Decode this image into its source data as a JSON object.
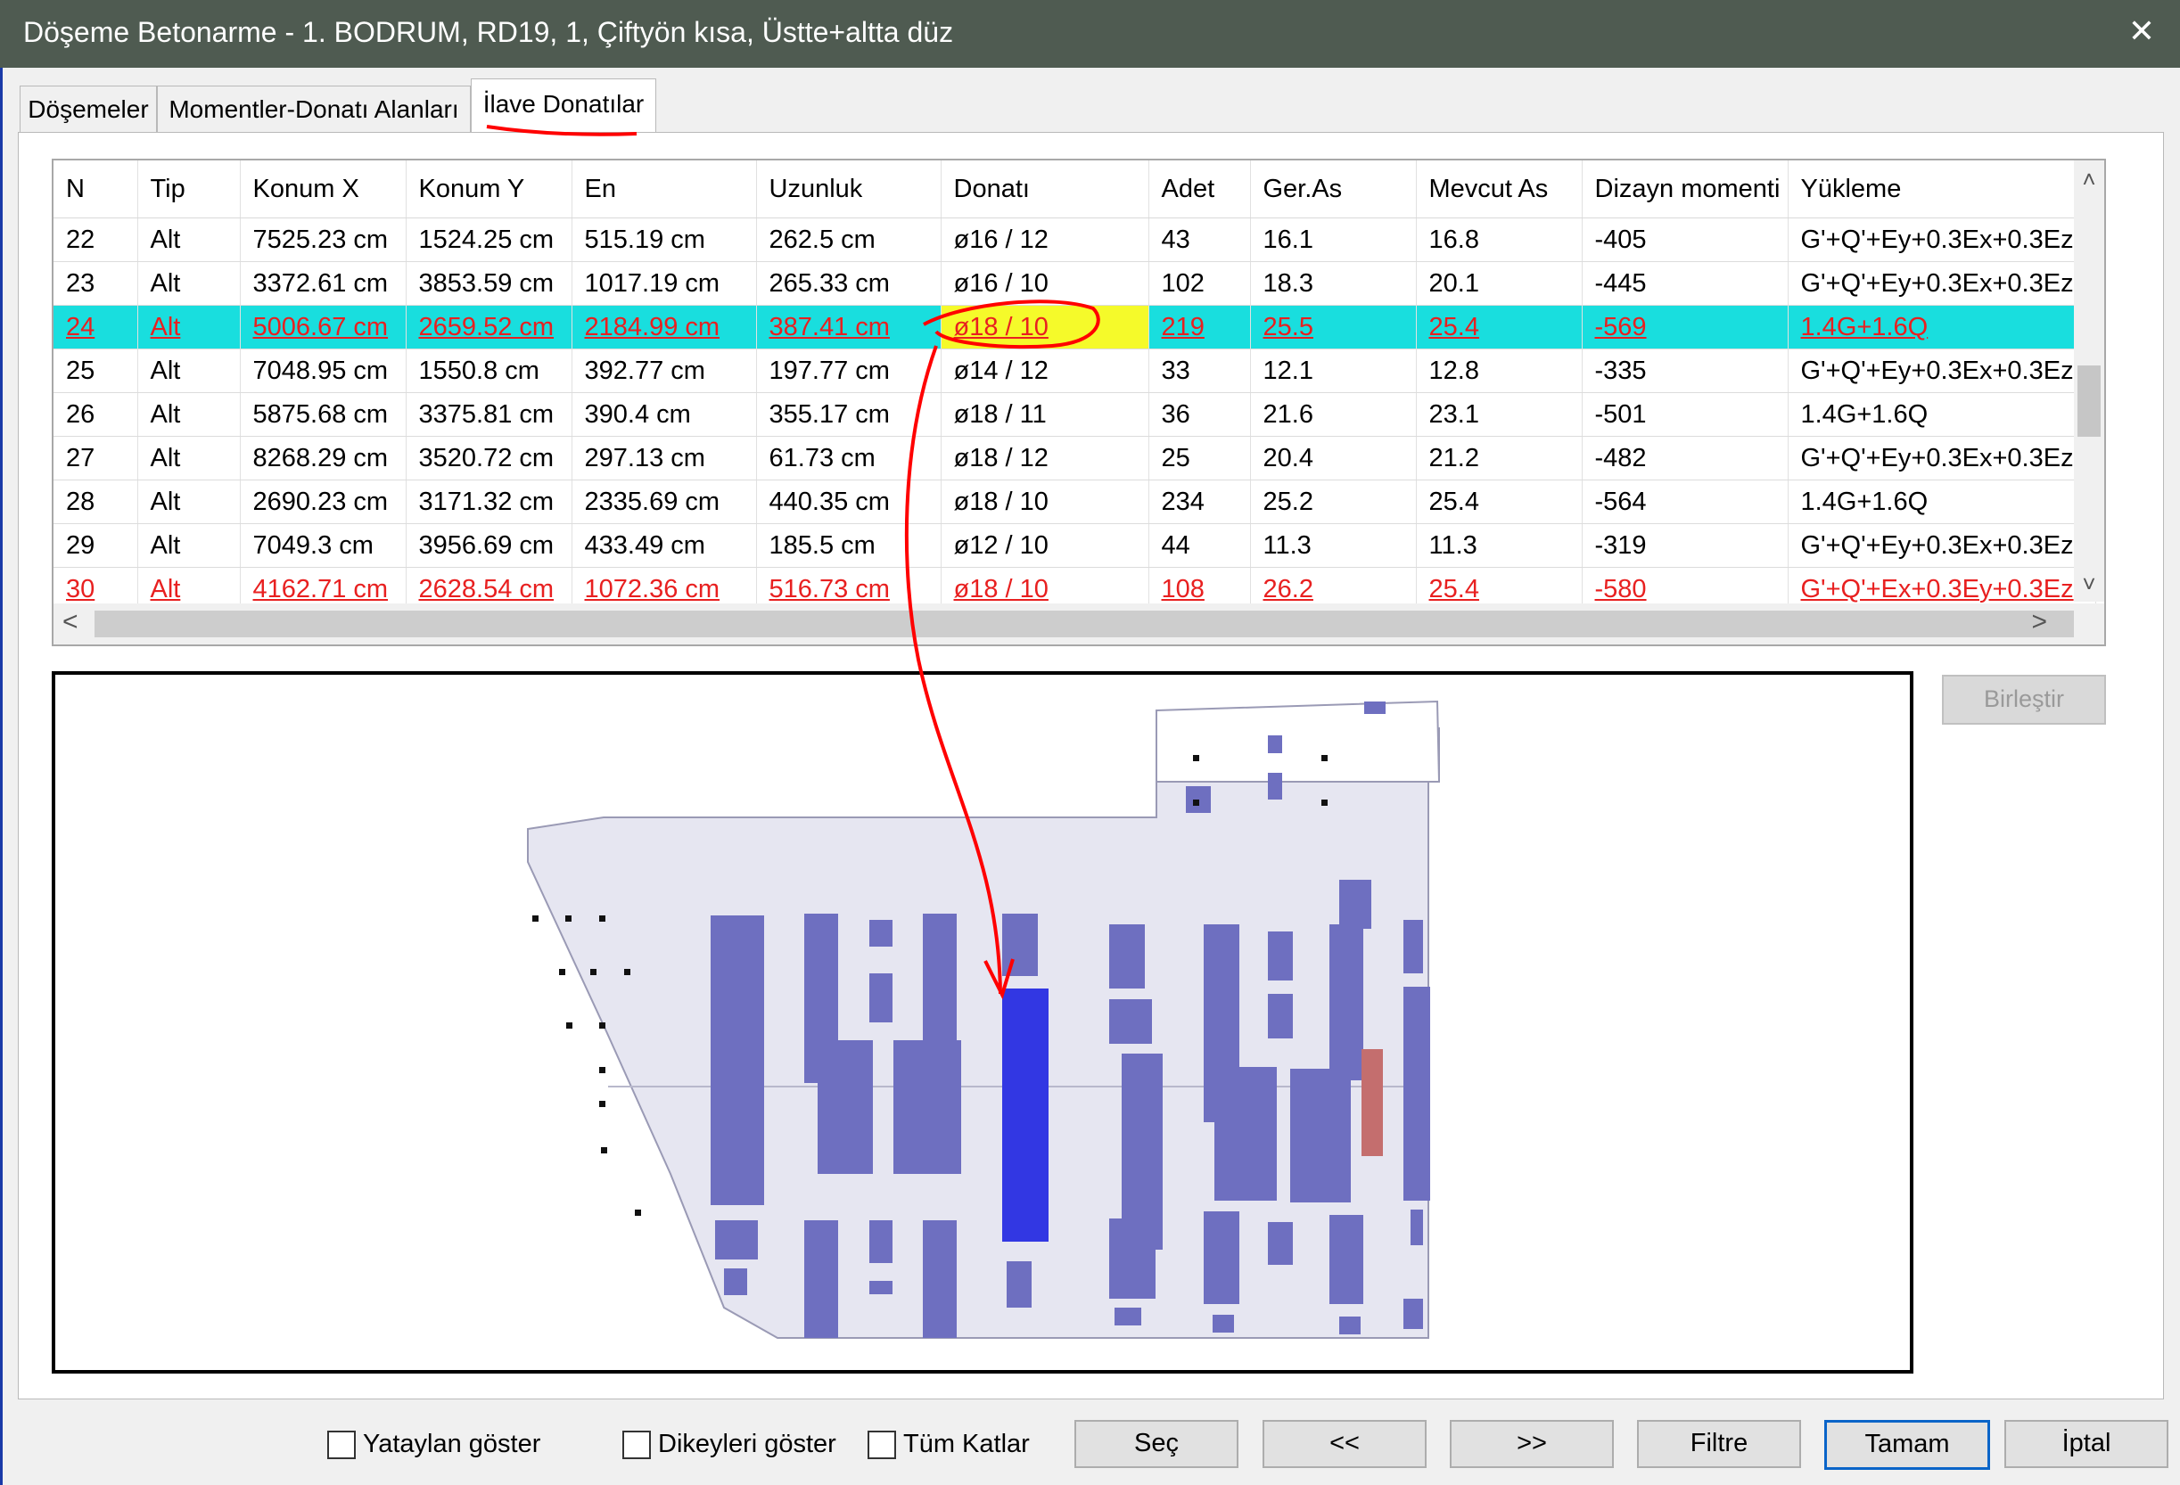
{
  "window": {
    "title": "Döşeme Betonarme - 1. BODRUM, RD19, 1, Çiftyön kısa, Üstte+altta düz",
    "close_glyph": "✕"
  },
  "tabs": [
    {
      "label": "Döşemeler"
    },
    {
      "label": "Momentler-Donatı Alanları"
    },
    {
      "label": "İlave Donatılar"
    }
  ],
  "grid": {
    "columns": [
      "N",
      "Tip",
      "Konum X",
      "Konum Y",
      "En",
      "Uzunluk",
      "Donatı",
      "Adet",
      "Ger.As",
      "Mevcut As",
      "Dizayn momenti",
      "Yükleme"
    ],
    "rows": [
      [
        "22",
        "Alt",
        "7525.23 cm",
        "1524.25 cm",
        "515.19 cm",
        "262.5 cm",
        "ø16 / 12",
        "43",
        "16.1",
        "16.8",
        "-405",
        "G'+Q'+Ey+0.3Ex+0.3Ez"
      ],
      [
        "23",
        "Alt",
        "3372.61 cm",
        "3853.59 cm",
        "1017.19 cm",
        "265.33 cm",
        "ø16 / 10",
        "102",
        "18.3",
        "20.1",
        "-445",
        "G'+Q'+Ey+0.3Ex+0.3Ez"
      ],
      [
        "24",
        "Alt",
        "5006.67 cm",
        "2659.52 cm",
        "2184.99 cm",
        "387.41 cm",
        "ø18 / 10",
        "219",
        "25.5",
        "25.4",
        "-569",
        "1.4G+1.6Q"
      ],
      [
        "25",
        "Alt",
        "7048.95 cm",
        "1550.8 cm",
        "392.77 cm",
        "197.77 cm",
        "ø14 / 12",
        "33",
        "12.1",
        "12.8",
        "-335",
        "G'+Q'+Ey+0.3Ex+0.3Ez"
      ],
      [
        "26",
        "Alt",
        "5875.68 cm",
        "3375.81 cm",
        "390.4 cm",
        "355.17 cm",
        "ø18 / 11",
        "36",
        "21.6",
        "23.1",
        "-501",
        "1.4G+1.6Q"
      ],
      [
        "27",
        "Alt",
        "8268.29 cm",
        "3520.72 cm",
        "297.13 cm",
        "61.73 cm",
        "ø18 / 12",
        "25",
        "20.4",
        "21.2",
        "-482",
        "G'+Q'+Ey+0.3Ex+0.3Ez"
      ],
      [
        "28",
        "Alt",
        "2690.23 cm",
        "3171.32 cm",
        "2335.69 cm",
        "440.35 cm",
        "ø18 / 10",
        "234",
        "25.2",
        "25.4",
        "-564",
        "1.4G+1.6Q"
      ],
      [
        "29",
        "Alt",
        "7049.3 cm",
        "3956.69 cm",
        "433.49 cm",
        "185.5 cm",
        "ø12 / 10",
        "44",
        "11.3",
        "11.3",
        "-319",
        "G'+Q'+Ey+0.3Ex+0.3Ez"
      ],
      [
        "30",
        "Alt",
        "4162.71 cm",
        "2628.54 cm",
        "1072.36 cm",
        "516.73 cm",
        "ø18 / 10",
        "108",
        "26.2",
        "25.4",
        "-580",
        "G'+Q'+Ex+0.3Ey+0.3Ez"
      ]
    ],
    "selected_row": "24",
    "warning_rows": [
      "30"
    ],
    "scroll_up_glyph": "˄",
    "scroll_down_glyph": "˅",
    "scroll_left_glyph": "<",
    "scroll_right_glyph": ">"
  },
  "birlestir_label": "Birleştir",
  "checkboxes": [
    {
      "label": "Yataylan göster",
      "checked": false
    },
    {
      "label": "Dikeyleri göster",
      "checked": false
    },
    {
      "label": "Tüm Katlar",
      "checked": false
    }
  ],
  "buttons": {
    "sec": "Seç",
    "prev": "<<",
    "next": ">>",
    "filtre": "Filtre",
    "tamam": "Tamam",
    "iptal": "İptal"
  },
  "colors": {
    "titlebar": "#4f5b51",
    "selected_row": "#19dede",
    "highlight_cell": "#f5fa2a",
    "warning_text": "#e82020",
    "slab_fill": "#e6e6f1",
    "rebar": "#6e6fc0",
    "rebar_selected": "#3237e3",
    "rebar_warning": "#c46e6e",
    "annotation": "#ff0000"
  }
}
